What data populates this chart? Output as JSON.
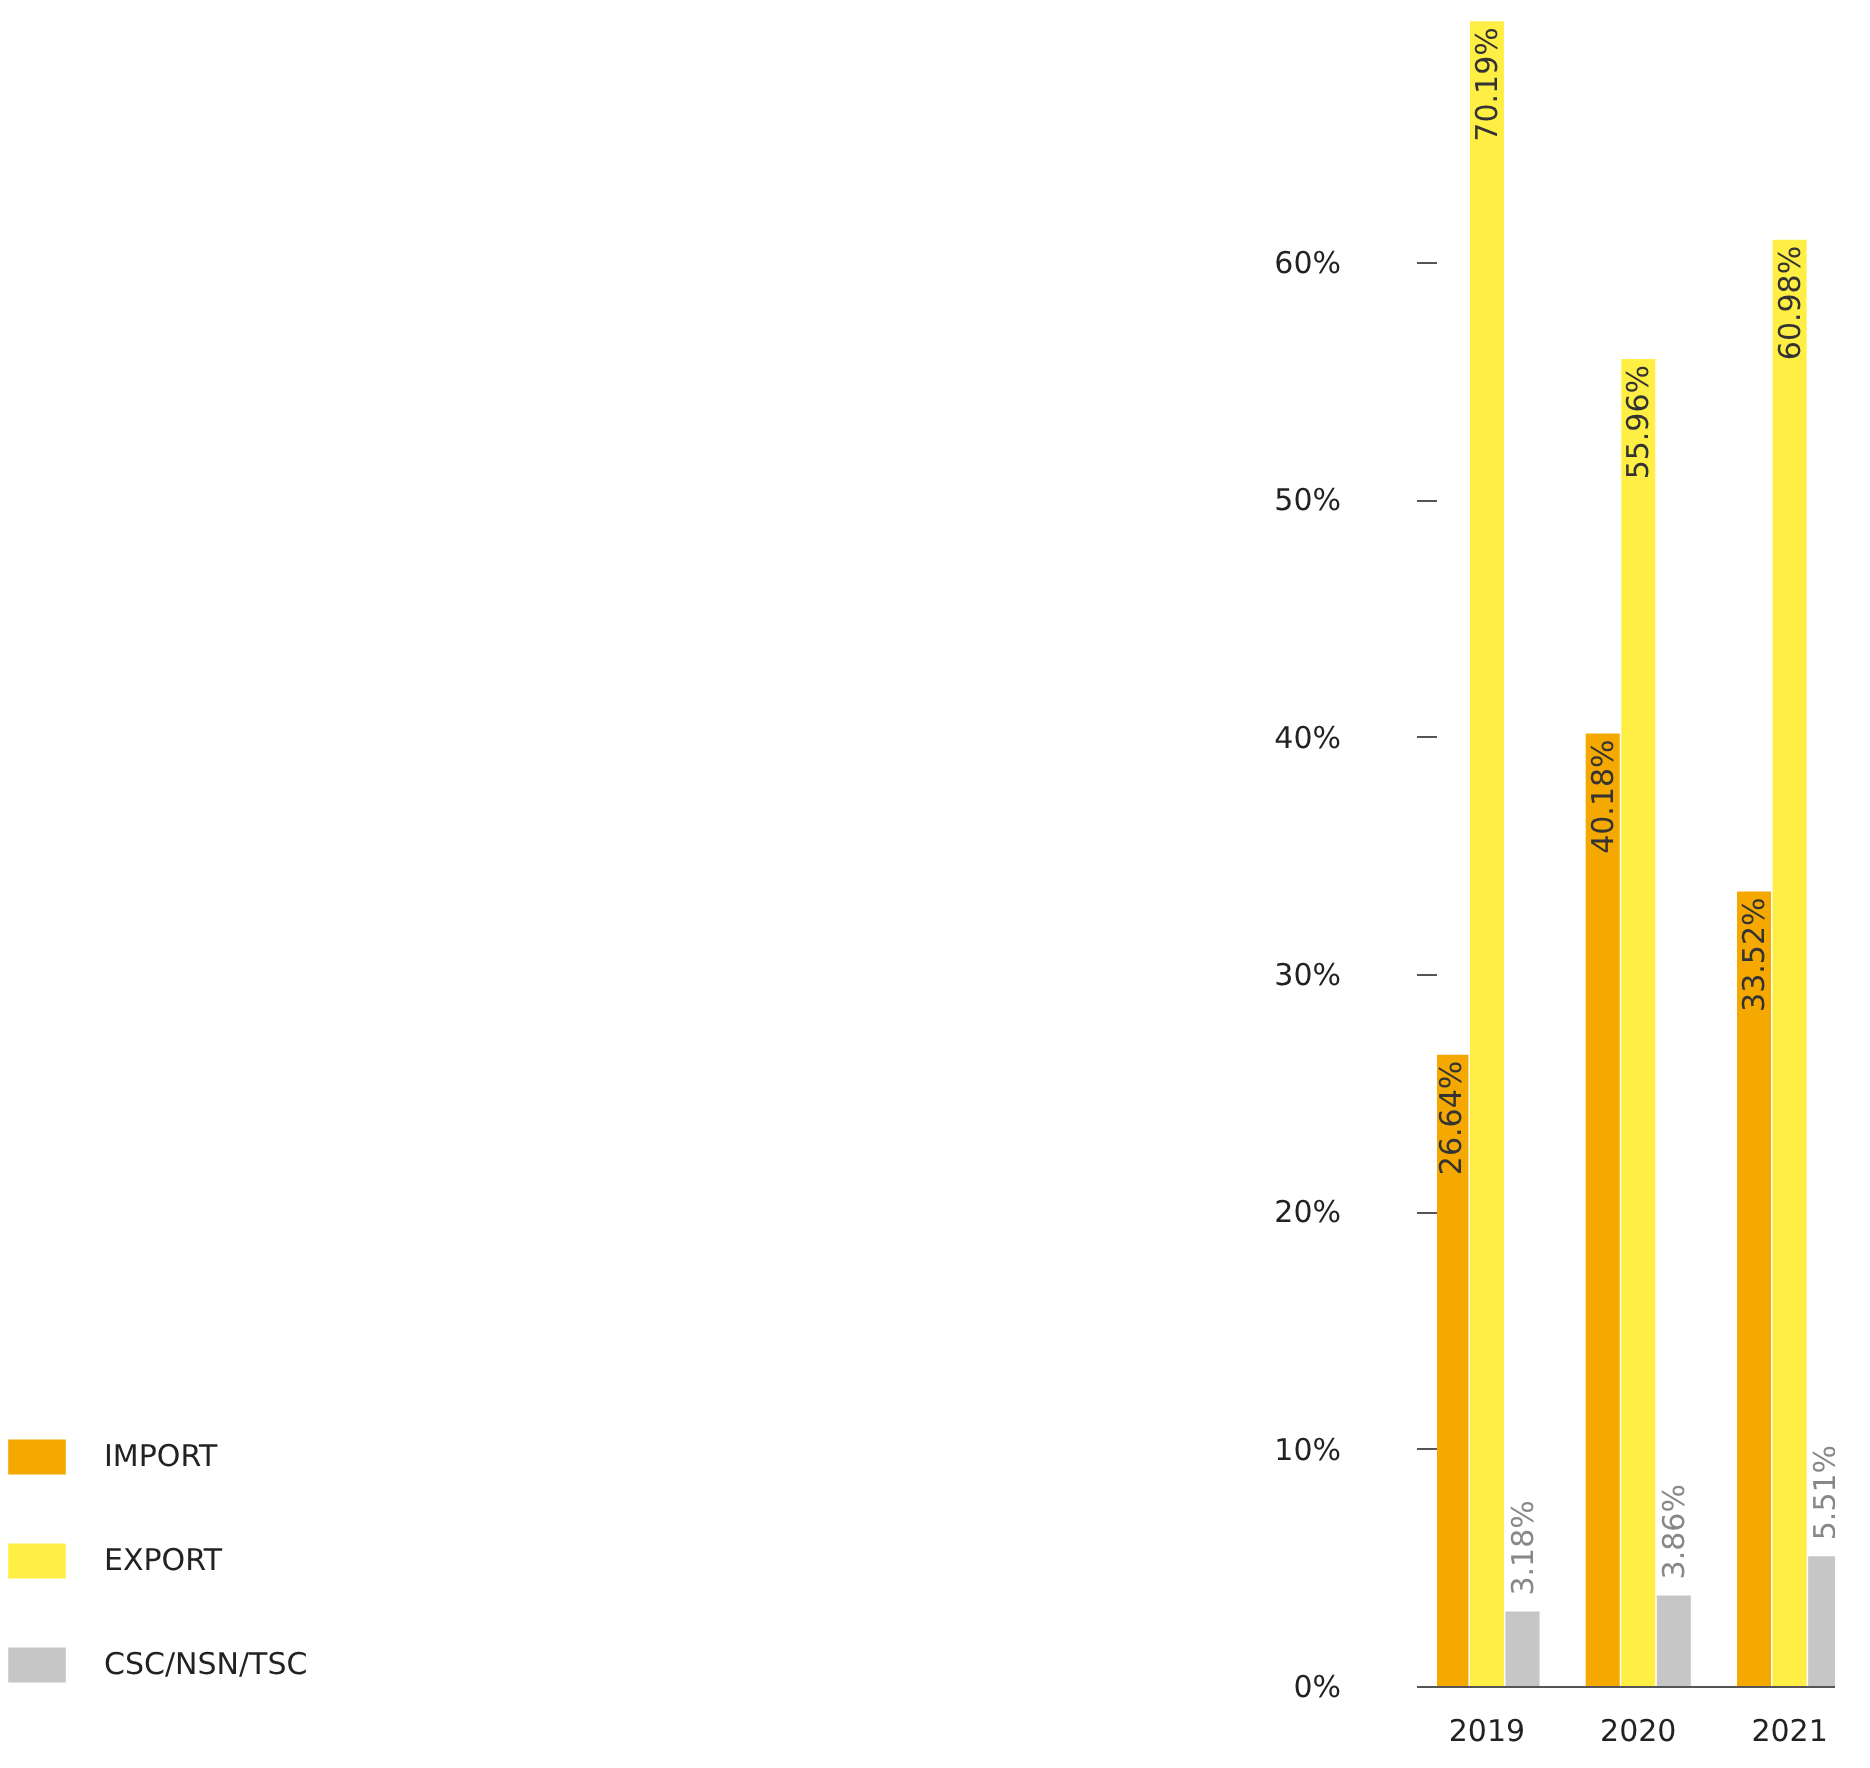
{
  "chart_data": {
    "type": "bar",
    "categories": [
      "2019",
      "2020",
      "2021"
    ],
    "series": [
      {
        "name": "IMPORT",
        "color": "#f5a800",
        "values": [
          26.64,
          40.18,
          33.52
        ],
        "value_labels": [
          "26.64%",
          "40.18%",
          "33.52%"
        ]
      },
      {
        "name": "EXPORT",
        "color": "#ffef45",
        "values": [
          70.19,
          55.96,
          60.98
        ],
        "value_labels": [
          "70.19%",
          "55.96%",
          "60.98%"
        ]
      },
      {
        "name": "CSC/NSN/TSC",
        "color": "#c6c6c6",
        "values": [
          3.18,
          3.86,
          5.51
        ],
        "value_labels": [
          "3.18%",
          "3.86%",
          "5.51%"
        ]
      }
    ],
    "ylim": [
      0,
      70.2
    ],
    "yticks": [
      {
        "value": 0,
        "label": "0%"
      },
      {
        "value": 10,
        "label": "10%"
      },
      {
        "value": 20,
        "label": "20%"
      },
      {
        "value": 30,
        "label": "30%"
      },
      {
        "value": 40,
        "label": "40%"
      },
      {
        "value": 50,
        "label": "50%"
      },
      {
        "value": 60,
        "label": "60%"
      }
    ],
    "grid": false,
    "legend": "bottom left"
  }
}
